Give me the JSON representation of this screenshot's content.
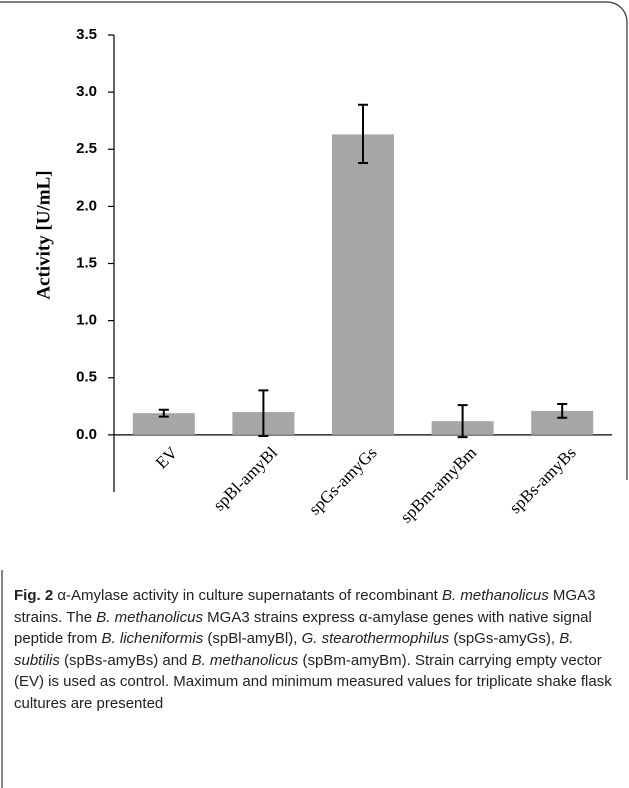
{
  "chart_data": {
    "type": "bar",
    "y_label": "Activity [U/mL]",
    "categories": [
      "EV",
      "spBl-amyBl",
      "spGs-amyGs",
      "spBm-amyBm",
      "spBs-amyBs"
    ],
    "values": [
      0.19,
      0.2,
      2.63,
      0.12,
      0.21
    ],
    "min": [
      0.16,
      -0.01,
      2.38,
      -0.02,
      0.15
    ],
    "max": [
      0.22,
      0.39,
      2.89,
      0.26,
      0.27
    ],
    "color": "#a6a6a6",
    "ylim": [
      -0.5,
      3.5
    ],
    "yticks": [
      {
        "value": 0,
        "label": "0.0"
      },
      {
        "value": 0.5,
        "label": "0.5"
      },
      {
        "value": 1,
        "label": "1.0"
      },
      {
        "value": 1.5,
        "label": "1.5"
      },
      {
        "value": 2,
        "label": "2.0"
      },
      {
        "value": 2.5,
        "label": "2.5"
      },
      {
        "value": 3,
        "label": "3.0"
      },
      {
        "value": 3.5,
        "label": "3.5"
      }
    ],
    "grid": false
  },
  "caption": {
    "label": "Fig. 2",
    "runs": [
      {
        "text": " α-Amylase activity in culture supernatants of recombinant ",
        "italic": false
      },
      {
        "text": "B. methanolicus",
        "italic": true
      },
      {
        "text": " MGA3 strains. The ",
        "italic": false
      },
      {
        "text": "B. methanolicus",
        "italic": true
      },
      {
        "text": " MGA3 strains express α-amylase genes with native signal peptide from ",
        "italic": false
      },
      {
        "text": "B. licheniformis",
        "italic": true
      },
      {
        "text": " (spBl-amyBl), ",
        "italic": false
      },
      {
        "text": "G. stearothermophilus",
        "italic": true
      },
      {
        "text": " (spGs-amyGs), ",
        "italic": false
      },
      {
        "text": "B. subtilis",
        "italic": true
      },
      {
        "text": " (spBs-amyBs) and ",
        "italic": false
      },
      {
        "text": "B. methanolicus",
        "italic": true
      },
      {
        "text": " (spBm-amyBm). Strain carrying empty vector (EV) is used as control. Maximum and minimum measured values for triplicate shake flask cultures are presented",
        "italic": false
      }
    ]
  }
}
